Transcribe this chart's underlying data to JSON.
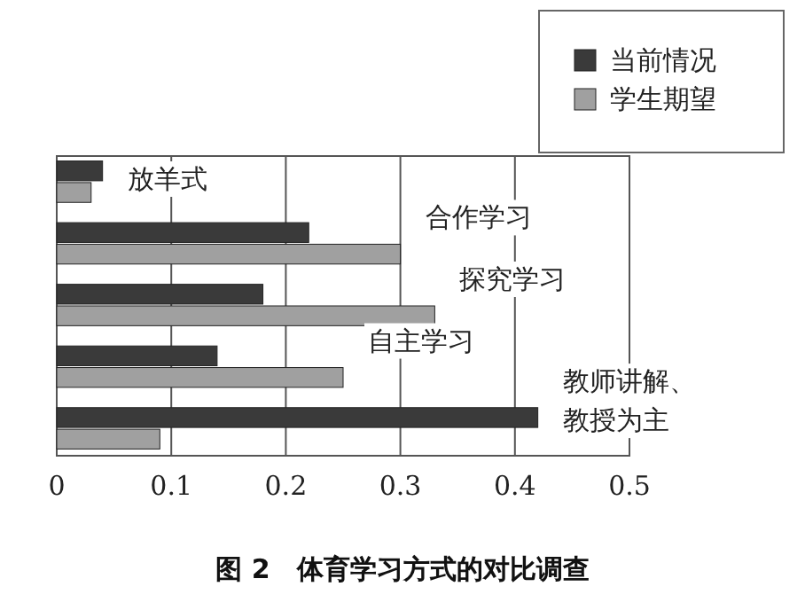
{
  "chart_data": {
    "type": "bar",
    "orientation": "horizontal",
    "title": "图 2　体育学习方式的对比调查",
    "categories": [
      "放羊式",
      "合作学习",
      "探究学习",
      "自主学习",
      "教师讲解、教授为主"
    ],
    "series": [
      {
        "name": "当前情况",
        "color": "#3a3a3a",
        "values": [
          0.04,
          0.22,
          0.18,
          0.14,
          0.42
        ]
      },
      {
        "name": "学生期望",
        "color": "#a0a0a0",
        "values": [
          0.03,
          0.3,
          0.33,
          0.25,
          0.09
        ]
      }
    ],
    "xlim": [
      0,
      0.5
    ],
    "xticks": [
      0,
      0.1,
      0.2,
      0.3,
      0.4,
      0.5
    ],
    "grid": "x",
    "legend": "top right"
  }
}
